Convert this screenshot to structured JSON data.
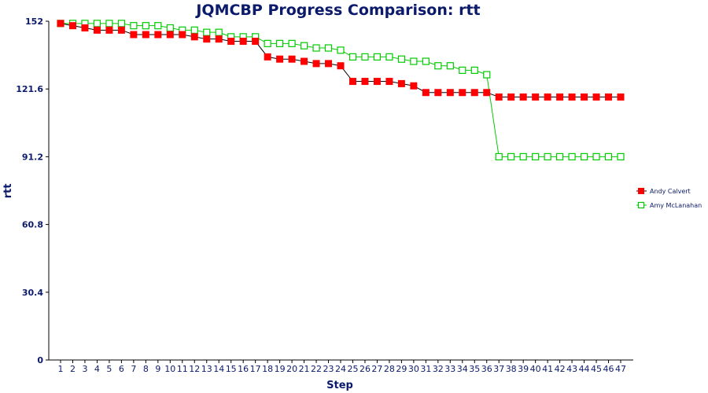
{
  "chart_data": {
    "type": "line",
    "title": "JQMCBP Progress Comparison: rtt",
    "xlabel": "Step",
    "ylabel": "rtt",
    "x": [
      1,
      2,
      3,
      4,
      5,
      6,
      7,
      8,
      9,
      10,
      11,
      12,
      13,
      14,
      15,
      16,
      17,
      18,
      19,
      20,
      21,
      22,
      23,
      24,
      25,
      26,
      27,
      28,
      29,
      30,
      31,
      32,
      33,
      34,
      35,
      36,
      37,
      38,
      39,
      40,
      41,
      42,
      43,
      44,
      45,
      46,
      47
    ],
    "xticks": [
      "1",
      "2",
      "3",
      "4",
      "5",
      "6",
      "7",
      "8",
      "9",
      "10",
      "11",
      "12",
      "13",
      "14",
      "15",
      "16",
      "17",
      "18",
      "19",
      "20",
      "21",
      "22",
      "23",
      "24",
      "25",
      "26",
      "27",
      "28",
      "29",
      "30",
      "31",
      "32",
      "33",
      "34",
      "35",
      "36",
      "37",
      "38",
      "39",
      "40",
      "41",
      "42",
      "43",
      "44",
      "45",
      "46",
      "47"
    ],
    "ylim": [
      0,
      152
    ],
    "yticks": [
      "0",
      "30.4",
      "60.8",
      "91.2",
      "121.6",
      "152"
    ],
    "ytick_values": [
      0,
      30.4,
      60.8,
      91.2,
      121.6,
      152
    ],
    "grid": false,
    "legend_position": "right",
    "series": [
      {
        "name": "Andy Calvert",
        "color": "#ff0000",
        "line_color": "#000000",
        "marker": "filled-square",
        "values": [
          151,
          150,
          149,
          148,
          148,
          148,
          146,
          146,
          146,
          146,
          146,
          145,
          144,
          144,
          143,
          143,
          143,
          136,
          135,
          135,
          134,
          133,
          133,
          132,
          125,
          125,
          125,
          125,
          124,
          123,
          120,
          120,
          120,
          120,
          120,
          120,
          118,
          118,
          118,
          118,
          118,
          118,
          118,
          118,
          118,
          118,
          118
        ]
      },
      {
        "name": "Amy McLanahan",
        "color": "#00cc00",
        "line_color": "#00cc00",
        "marker": "open-square",
        "values": [
          151,
          151,
          151,
          151,
          151,
          151,
          150,
          150,
          150,
          149,
          148,
          148,
          147,
          147,
          145,
          145,
          145,
          142,
          142,
          142,
          141,
          140,
          140,
          139,
          136,
          136,
          136,
          136,
          135,
          134,
          134,
          132,
          132,
          130,
          130,
          128,
          91.2,
          91.2,
          91.2,
          91.2,
          91.2,
          91.2,
          91.2,
          91.2,
          91.2,
          91.2,
          91.2
        ]
      }
    ]
  }
}
